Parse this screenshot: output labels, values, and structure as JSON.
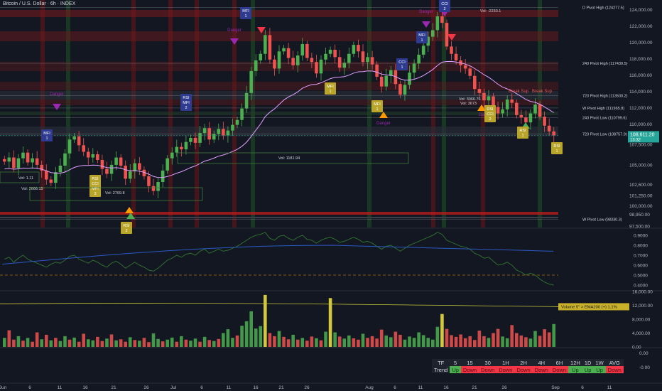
{
  "title": "Bitcoin / U.S. Dollar · 6h · INDEX",
  "colors": {
    "background": "#131722",
    "up": "#4caf50",
    "down": "#ef5350",
    "ema_pink": "#e1a0ff",
    "rsi_line": "#2f6d2f",
    "rsi_ma": "#2b59c3",
    "vol_ema": "#c9c93a",
    "highlight_vol": "#f5e642",
    "level_red": "#b71c1c",
    "last_price": "#26a69a"
  },
  "chart_data": [
    {
      "type": "candlestick",
      "title": "Bitcoin / U.S. Dollar · 6h · INDEX",
      "ylim": [
        97500,
        124500
      ],
      "yticks": [
        "124,000.00",
        "122,000.00",
        "120,000.00",
        "118,000.00",
        "116,000.00",
        "114,000.00",
        "112,000.00",
        "110,000.00",
        "107,500.00",
        "105,000.00",
        "102,600.00",
        "101,250.00",
        "100,000.00",
        "98,950.00",
        "97,500.00"
      ],
      "xticks": [
        "Jun",
        "6",
        "11",
        "16",
        "21",
        "26",
        "Jul",
        "6",
        "11",
        "16",
        "21",
        "26",
        "Aug",
        "6",
        "11",
        "16",
        "21",
        "26",
        "Sep",
        "6",
        "11"
      ],
      "close_path": [
        105400,
        105900,
        104600,
        105800,
        106500,
        105300,
        105800,
        105000,
        104300,
        103200,
        102800,
        104100,
        104900,
        106400,
        108100,
        108500,
        107400,
        106600,
        105900,
        106300,
        105600,
        104500,
        103900,
        105000,
        105900,
        104900,
        103300,
        104200,
        105200,
        104400,
        103600,
        102400,
        101800,
        102900,
        104300,
        105800,
        106500,
        107200,
        106900,
        107800,
        108300,
        107700,
        108900,
        109500,
        108100,
        108800,
        109400,
        108600,
        109200,
        109900,
        110500,
        111900,
        113800,
        116500,
        117800,
        118600,
        120900,
        117900,
        116800,
        118900,
        119300,
        118100,
        117200,
        118400,
        119800,
        118100,
        117600,
        116200,
        117900,
        118600,
        119100,
        118200,
        116900,
        117500,
        118600,
        119700,
        118900,
        117600,
        118200,
        117300,
        115800,
        114600,
        115900,
        116600,
        114900,
        113600,
        114800,
        116300,
        117400,
        118500,
        119600,
        120700,
        121500,
        123200,
        122400,
        119500,
        118600,
        117800,
        117200,
        116800,
        115900,
        114300,
        113800,
        112900,
        113400,
        112100,
        111300,
        111800,
        113000,
        112600,
        111100,
        110800,
        110200,
        111300,
        112400,
        110900,
        109800,
        109100,
        108611
      ],
      "last_price": "108,611.20",
      "countdown": "13:32",
      "levels": [
        {
          "label": "D Pivot High (124277.5)",
          "value": 124277.5
        },
        {
          "label": "240 Pivot High (117439.5)",
          "value": 117439.5
        },
        {
          "label": "720 Pivot High (113500.2)",
          "value": 113500.2
        },
        {
          "label": "W Pivot High (111965.8)",
          "value": 111965.8
        },
        {
          "label": "240 Pivot Low (110799.6)",
          "value": 110799.6
        },
        {
          "label": "720 Pivot Low (108757.9)",
          "value": 108757.9
        },
        {
          "label": "W Pivot Low (98330.3)",
          "value": 98330.3
        }
      ],
      "volume_labels": [
        "Vol: -2233.1",
        "Vol: 1181.94",
        "Vol: 2666.15",
        "Vol: 2769.8",
        "Vol: 3066.76",
        "Vol: 3673",
        "Vol: 1.11"
      ],
      "annotations": [
        "Danger",
        "Danger",
        "Danger",
        "Danger",
        "Danger",
        "Break Sup",
        "Break Sup"
      ],
      "signal_badges": [
        {
          "lines": [
            "MFI",
            "1"
          ]
        },
        {
          "lines": [
            "RSI",
            "MFI",
            "2"
          ]
        },
        {
          "lines": [
            "MFI",
            "1"
          ]
        },
        {
          "lines": [
            "MFI",
            "1"
          ]
        },
        {
          "lines": [
            "MFI",
            "1"
          ]
        },
        {
          "lines": [
            "CCI",
            "1"
          ]
        },
        {
          "lines": [
            "CCI",
            "2"
          ]
        },
        {
          "lines": [
            "RSI",
            "CCI",
            "MFI",
            "3"
          ]
        },
        {
          "lines": [
            "RSI",
            "2"
          ]
        },
        {
          "lines": [
            "MFI",
            "1"
          ]
        },
        {
          "lines": [
            "MFI",
            "1"
          ]
        },
        {
          "lines": [
            "RSI",
            "CCI",
            "2"
          ]
        },
        {
          "lines": [
            "RSI",
            "1"
          ]
        },
        {
          "lines": [
            "RSI",
            "1"
          ]
        }
      ]
    },
    {
      "type": "line",
      "ylim": [
        0.35,
        0.95
      ],
      "yticks": [
        "0.9000",
        "0.8000",
        "0.7000",
        "0.6000",
        "0.5000",
        "0.4000"
      ],
      "series_main": [
        0.66,
        0.68,
        0.63,
        0.67,
        0.7,
        0.66,
        0.64,
        0.62,
        0.6,
        0.58,
        0.61,
        0.63,
        0.62,
        0.65,
        0.69,
        0.7,
        0.66,
        0.64,
        0.62,
        0.65,
        0.63,
        0.6,
        0.58,
        0.62,
        0.64,
        0.61,
        0.57,
        0.6,
        0.63,
        0.6,
        0.58,
        0.55,
        0.54,
        0.57,
        0.61,
        0.65,
        0.67,
        0.7,
        0.68,
        0.71,
        0.72,
        0.7,
        0.74,
        0.76,
        0.72,
        0.74,
        0.76,
        0.74,
        0.75,
        0.77,
        0.79,
        0.82,
        0.85,
        0.88,
        0.9,
        0.91,
        0.93,
        0.87,
        0.85,
        0.89,
        0.9,
        0.87,
        0.85,
        0.88,
        0.9,
        0.86,
        0.85,
        0.82,
        0.85,
        0.87,
        0.88,
        0.86,
        0.83,
        0.84,
        0.86,
        0.88,
        0.86,
        0.83,
        0.84,
        0.82,
        0.79,
        0.76,
        0.79,
        0.8,
        0.77,
        0.74,
        0.77,
        0.8,
        0.82,
        0.84,
        0.86,
        0.88,
        0.9,
        0.93,
        0.91,
        0.85,
        0.83,
        0.81,
        0.79,
        0.78,
        0.76,
        0.72,
        0.7,
        0.67,
        0.68,
        0.64,
        0.6,
        0.61,
        0.63,
        0.6,
        0.55,
        0.53,
        0.5,
        0.52,
        0.5,
        0.46,
        0.43,
        0.41,
        0.4
      ],
      "series_ma_start": 0.61,
      "series_ma_peak": 0.8,
      "series_ma_end": 0.74
    },
    {
      "type": "bar",
      "ylim": [
        0,
        16000
      ],
      "yticks": [
        "16,000.00",
        "12,000.00",
        "8,000.00",
        "4,000.00",
        "0.00"
      ],
      "legend": "Volume 5\" > EMA200 (+) 1.1%",
      "values": [
        2600,
        4800,
        2100,
        3100,
        1800,
        2600,
        1500,
        4200,
        2200,
        3500,
        1900,
        2600,
        1700,
        3100,
        2100,
        2700,
        1500,
        3800,
        2200,
        1900,
        2900,
        1700,
        2400,
        3600,
        1900,
        2200,
        1500,
        2800,
        2000,
        1800,
        2600,
        1400,
        3900,
        2300,
        1600,
        2100,
        2700,
        1500,
        3100,
        2100,
        1800,
        2400,
        1500,
        2900,
        2000,
        1700,
        2300,
        4000,
        5100,
        2600,
        3300,
        6100,
        7400,
        10300,
        5300,
        6000,
        15000,
        4000,
        3100,
        4600,
        2900,
        2200,
        3500,
        2100,
        2600,
        1800,
        3000,
        2500,
        1900,
        4400,
        14100,
        4200,
        3000,
        2400,
        3300,
        2500,
        2100,
        3800,
        2600,
        3100,
        2400,
        5000,
        3300,
        2800,
        4400,
        3500,
        2100,
        3000,
        2600,
        4200,
        3400,
        2600,
        2100,
        5800,
        9500,
        5200,
        3400,
        2900,
        3600,
        2500,
        3100,
        2000,
        4700,
        3100,
        2600,
        4000,
        5200,
        3000,
        2500,
        6300,
        4000,
        3300,
        2800,
        2400,
        4600,
        3200,
        5100,
        4200,
        6600
      ],
      "up_flags": [
        1,
        0,
        0,
        1,
        0,
        1,
        0,
        0,
        1,
        0,
        1,
        0,
        1,
        1,
        0,
        1,
        0,
        0,
        1,
        1,
        0,
        0,
        1,
        0,
        1,
        0,
        0,
        1,
        0,
        1,
        0,
        0,
        1,
        1,
        0,
        1,
        1,
        0,
        1,
        0,
        1,
        1,
        0,
        1,
        0,
        1,
        0,
        1,
        1,
        1,
        0,
        1,
        1,
        1,
        1,
        1,
        1,
        0,
        0,
        1,
        0,
        0,
        1,
        0,
        1,
        0,
        0,
        1,
        0,
        1,
        0,
        1,
        0,
        1,
        1,
        0,
        0,
        1,
        0,
        0,
        0,
        0,
        1,
        1,
        0,
        0,
        1,
        1,
        1,
        1,
        1,
        1,
        1,
        1,
        0,
        0,
        0,
        0,
        0,
        0,
        0,
        0,
        0,
        0,
        1,
        0,
        0,
        1,
        1,
        0,
        0,
        0,
        0,
        1,
        1,
        0,
        0,
        0,
        1
      ],
      "highlight_idx": [
        56,
        70,
        94
      ]
    },
    {
      "type": "table",
      "header": [
        "TF",
        "5",
        "15",
        "30",
        "1H",
        "2H",
        "4H",
        "6H",
        "12H",
        "1D",
        "1W",
        "AVG"
      ],
      "row_label": "Trend",
      "row": [
        "Up",
        "Down",
        "Down",
        "Down",
        "Down",
        "Down",
        "Down",
        "Up",
        "Up",
        "Up",
        "Down"
      ]
    }
  ],
  "panel4_yticks": [
    "0.00",
    "-0.00"
  ]
}
